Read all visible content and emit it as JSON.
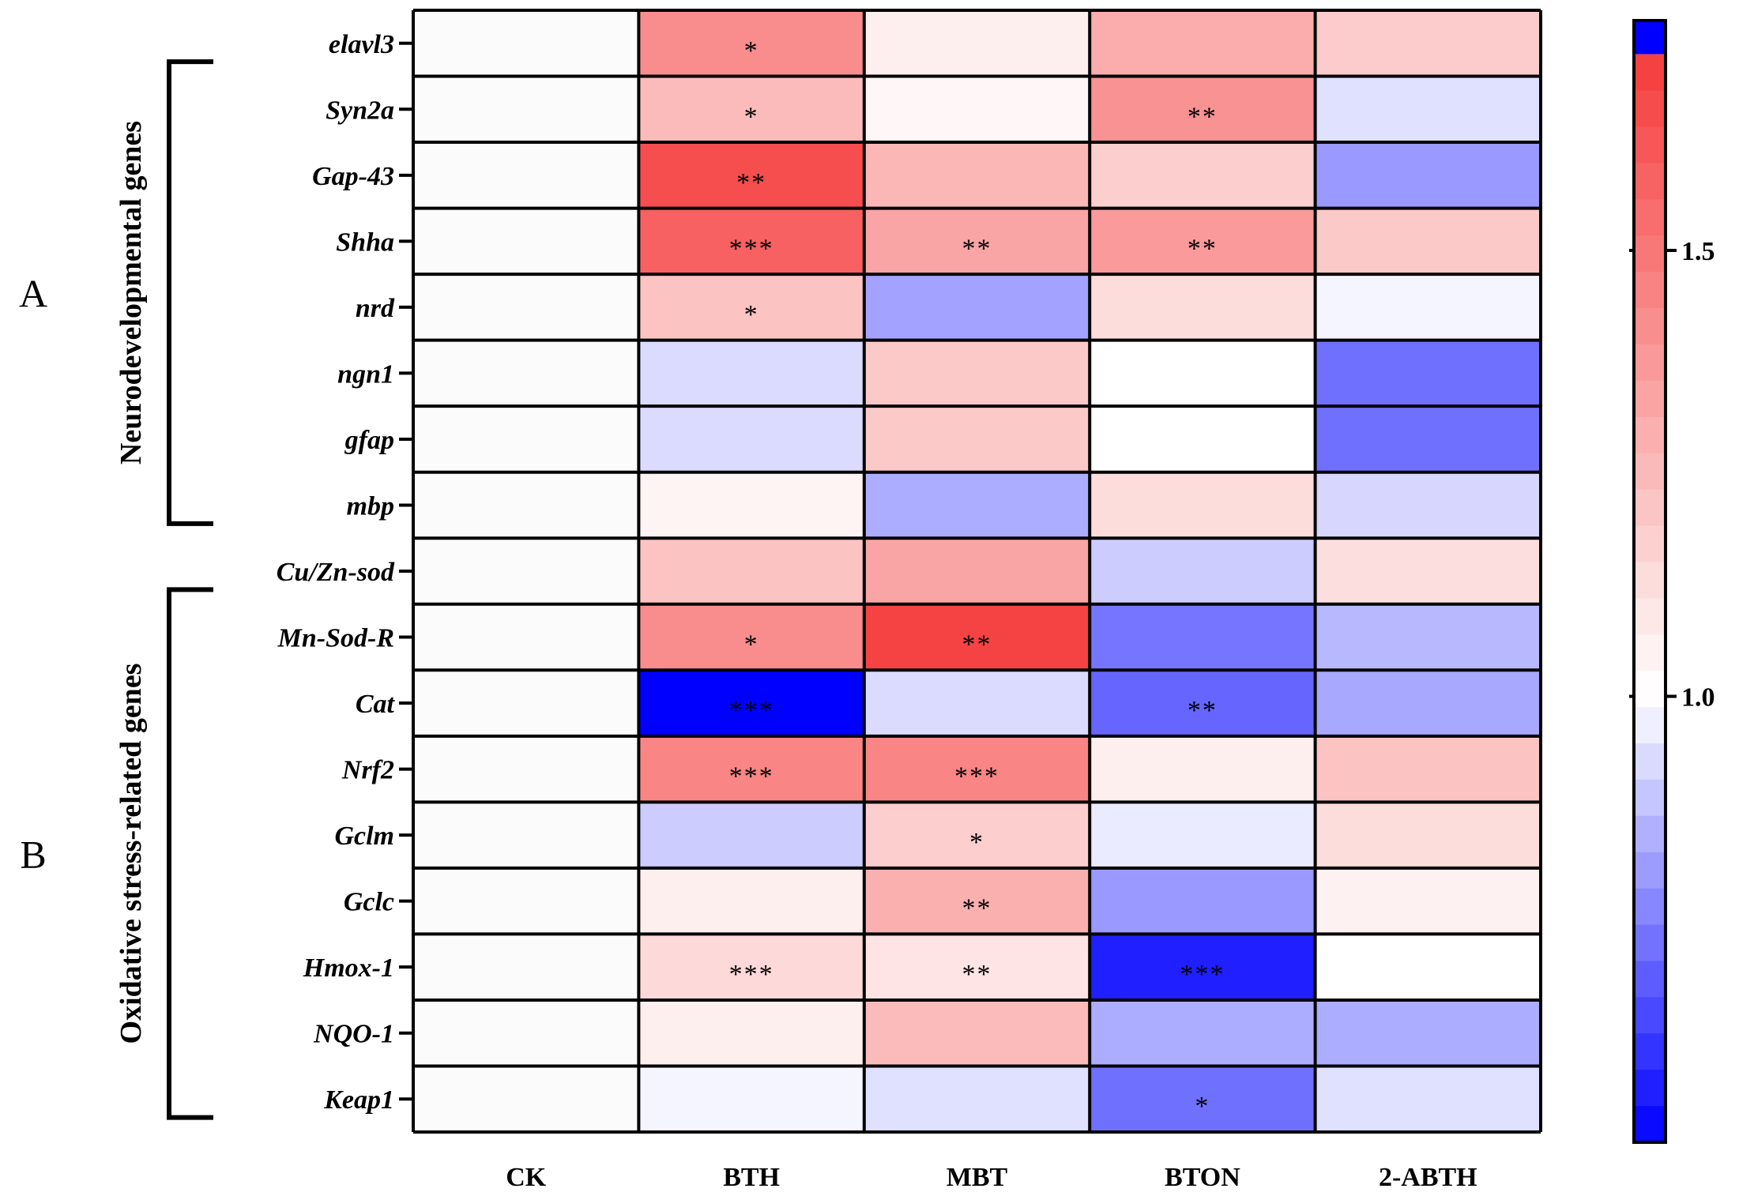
{
  "chart_data": {
    "type": "heatmap",
    "columns": [
      "CK",
      "BTH",
      "MBT",
      "BTON",
      "2-ABTH"
    ],
    "rows": [
      "elavl3",
      "Syn2a",
      "Gap-43",
      "Shha",
      "nrd",
      "ngn1",
      "gfap",
      "mbp",
      "Cu/Zn-sod",
      "Mn-Sod-R",
      "Cat",
      "Nrf2",
      "Gclm",
      "Gclc",
      "Hmox-1",
      "NQO-1",
      "Keap1"
    ],
    "values": [
      [
        1.0,
        1.42,
        1.06,
        1.3,
        1.19
      ],
      [
        1.0,
        1.25,
        1.03,
        1.4,
        0.94
      ],
      [
        1.0,
        1.65,
        1.27,
        1.18,
        0.8
      ],
      [
        1.0,
        1.58,
        1.33,
        1.37,
        1.2
      ],
      [
        1.0,
        1.22,
        0.82,
        1.13,
        0.98
      ],
      [
        1.0,
        0.93,
        1.2,
        1.0,
        0.72
      ],
      [
        1.0,
        0.93,
        1.2,
        1.0,
        0.72
      ],
      [
        1.0,
        1.04,
        0.84,
        1.13,
        0.92
      ],
      [
        1.0,
        1.22,
        1.33,
        0.9,
        1.12
      ],
      [
        1.0,
        1.42,
        1.69,
        0.73,
        0.86
      ],
      [
        1.0,
        0.5,
        0.93,
        0.7,
        0.83
      ],
      [
        1.0,
        1.45,
        1.45,
        1.06,
        1.22
      ],
      [
        1.0,
        0.9,
        1.18,
        0.96,
        1.13
      ],
      [
        1.0,
        1.06,
        1.29,
        0.8,
        1.05
      ],
      [
        1.0,
        1.14,
        1.1,
        0.56,
        1.0
      ],
      [
        1.0,
        1.06,
        1.25,
        0.84,
        0.84
      ],
      [
        1.0,
        0.98,
        0.94,
        0.72,
        0.94
      ]
    ],
    "significance": [
      [
        "",
        "*",
        "",
        "",
        ""
      ],
      [
        "",
        "*",
        "",
        "**",
        ""
      ],
      [
        "",
        "**",
        "",
        "",
        ""
      ],
      [
        "",
        "***",
        "**",
        "**",
        ""
      ],
      [
        "",
        "*",
        "",
        "",
        ""
      ],
      [
        "",
        "",
        "",
        "",
        ""
      ],
      [
        "",
        "",
        "",
        "",
        ""
      ],
      [
        "",
        "",
        "",
        "",
        ""
      ],
      [
        "",
        "",
        "",
        "",
        ""
      ],
      [
        "",
        "*",
        "**",
        "",
        ""
      ],
      [
        "",
        "***",
        "",
        "**",
        ""
      ],
      [
        "",
        "***",
        "***",
        "",
        ""
      ],
      [
        "",
        "",
        "*",
        "",
        ""
      ],
      [
        "",
        "",
        "**",
        "",
        ""
      ],
      [
        "",
        "***",
        "**",
        "***",
        ""
      ],
      [
        "",
        "",
        "",
        "",
        ""
      ],
      [
        "",
        "",
        "",
        "*",
        ""
      ]
    ],
    "colorbar": {
      "range": [
        0.5,
        1.8
      ],
      "ticks": [
        1.0,
        1.5
      ],
      "tick_labels": [
        "1.0",
        "1.5"
      ],
      "low_color": "#0000ff",
      "mid_color": "#ffffff",
      "high_color": "#f53b3b",
      "over_color": "#0000ff"
    },
    "groups": [
      {
        "letter": "A",
        "title": "Neurodevelopmental genes",
        "rows": [
          0,
          7
        ]
      },
      {
        "letter": "B",
        "title": "Oxidative stress-related genes",
        "rows": [
          8,
          16
        ]
      }
    ]
  }
}
